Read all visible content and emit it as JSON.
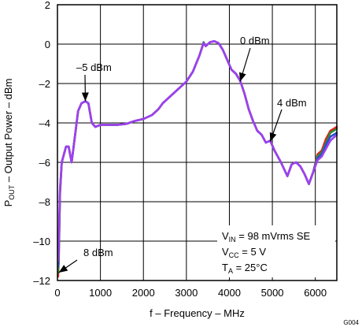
{
  "chart_data": {
    "type": "line",
    "xlabel": "f – Frequency – MHz",
    "ylabel": {
      "prefix": "P",
      "sub": "OUT",
      "rest": " – Output Power – dBm"
    },
    "xlim": [
      0,
      6500
    ],
    "ylim": [
      -12,
      2
    ],
    "xticks": [
      0,
      1000,
      2000,
      3000,
      4000,
      5000,
      6000
    ],
    "yticks": [
      2,
      0,
      -2,
      -4,
      -6,
      -8,
      -10,
      -12
    ],
    "xtick_labels": [
      "0",
      "1000",
      "2000",
      "3000",
      "4000",
      "5000",
      "6000"
    ],
    "ytick_labels": [
      "2",
      "0",
      "–2",
      "–4",
      "–6",
      "–8",
      "–10",
      "–12"
    ],
    "grid": true,
    "annotations": [
      {
        "text": "–5 dBm",
        "target": [
          650,
          -2.9
        ]
      },
      {
        "text": "0 dBm",
        "target": [
          4250,
          -1.9
        ]
      },
      {
        "text": "4 dBm",
        "target": [
          4950,
          -4.95
        ]
      },
      {
        "text": "8 dBm",
        "target": [
          30,
          -11.6
        ]
      }
    ],
    "conditions": [
      {
        "pre": "V",
        "sub": "IN",
        "post": " = 98 mVrms SE"
      },
      {
        "pre": "V",
        "sub": "CC",
        "post": " = 5 V"
      },
      {
        "pre": "T",
        "sub": "A",
        "post": " = 25°C"
      }
    ],
    "figure_id": "G004",
    "series": [
      {
        "name": "8 dBm",
        "color": "#e8201a",
        "values": [
          [
            15,
            -11.8
          ],
          [
            30,
            -11.0
          ],
          [
            60,
            -7.6
          ],
          [
            100,
            -6.0
          ],
          [
            150,
            -5.6
          ],
          [
            200,
            -5.2
          ],
          [
            260,
            -5.2
          ],
          [
            330,
            -6.0
          ],
          [
            400,
            -4.8
          ],
          [
            480,
            -3.4
          ],
          [
            560,
            -3.0
          ],
          [
            650,
            -2.9
          ],
          [
            720,
            -3.0
          ],
          [
            800,
            -4.0
          ],
          [
            880,
            -4.2
          ],
          [
            1000,
            -4.1
          ],
          [
            1200,
            -4.1
          ],
          [
            1400,
            -4.1
          ],
          [
            1600,
            -4.05
          ],
          [
            1800,
            -3.9
          ],
          [
            2000,
            -3.8
          ],
          [
            2200,
            -3.6
          ],
          [
            2350,
            -3.3
          ],
          [
            2450,
            -3.0
          ],
          [
            2600,
            -2.7
          ],
          [
            2800,
            -2.3
          ],
          [
            3000,
            -1.9
          ],
          [
            3150,
            -1.4
          ],
          [
            3300,
            -0.6
          ],
          [
            3400,
            0.05
          ],
          [
            3450,
            -0.1
          ],
          [
            3550,
            0.1
          ],
          [
            3650,
            0.15
          ],
          [
            3750,
            0.05
          ],
          [
            3850,
            -0.3
          ],
          [
            3950,
            -0.8
          ],
          [
            4050,
            -1.3
          ],
          [
            4150,
            -1.5
          ],
          [
            4250,
            -1.85
          ],
          [
            4350,
            -2.5
          ],
          [
            4450,
            -3.3
          ],
          [
            4550,
            -3.9
          ],
          [
            4650,
            -4.4
          ],
          [
            4750,
            -4.6
          ],
          [
            4850,
            -5.0
          ],
          [
            4950,
            -4.9
          ],
          [
            5050,
            -5.4
          ],
          [
            5200,
            -6.0
          ],
          [
            5350,
            -6.7
          ],
          [
            5450,
            -6.1
          ],
          [
            5550,
            -6.0
          ],
          [
            5650,
            -6.2
          ],
          [
            5750,
            -6.6
          ],
          [
            5850,
            -7.1
          ],
          [
            5950,
            -6.5
          ],
          [
            6050,
            -5.6
          ],
          [
            6150,
            -5.4
          ],
          [
            6250,
            -4.8
          ],
          [
            6350,
            -4.4
          ],
          [
            6500,
            -4.2
          ]
        ]
      },
      {
        "name": "4 dBm",
        "color": "#2e8b3a",
        "values": [
          [
            15,
            -11.6
          ],
          [
            30,
            -10.8
          ],
          [
            60,
            -7.5
          ],
          [
            100,
            -6.0
          ],
          [
            150,
            -5.6
          ],
          [
            200,
            -5.2
          ],
          [
            260,
            -5.2
          ],
          [
            330,
            -6.0
          ],
          [
            400,
            -4.8
          ],
          [
            480,
            -3.4
          ],
          [
            560,
            -3.0
          ],
          [
            650,
            -2.9
          ],
          [
            720,
            -3.0
          ],
          [
            800,
            -4.0
          ],
          [
            880,
            -4.2
          ],
          [
            1000,
            -4.1
          ],
          [
            1200,
            -4.1
          ],
          [
            1400,
            -4.1
          ],
          [
            1600,
            -4.05
          ],
          [
            1800,
            -3.9
          ],
          [
            2000,
            -3.8
          ],
          [
            2200,
            -3.6
          ],
          [
            2350,
            -3.3
          ],
          [
            2450,
            -3.0
          ],
          [
            2600,
            -2.7
          ],
          [
            2800,
            -2.3
          ],
          [
            3000,
            -1.9
          ],
          [
            3150,
            -1.4
          ],
          [
            3300,
            -0.6
          ],
          [
            3400,
            0.1
          ],
          [
            3450,
            -0.1
          ],
          [
            3550,
            0.1
          ],
          [
            3650,
            0.15
          ],
          [
            3750,
            0.05
          ],
          [
            3850,
            -0.3
          ],
          [
            3950,
            -0.8
          ],
          [
            4050,
            -1.3
          ],
          [
            4150,
            -1.5
          ],
          [
            4250,
            -1.85
          ],
          [
            4350,
            -2.5
          ],
          [
            4450,
            -3.3
          ],
          [
            4550,
            -3.9
          ],
          [
            4650,
            -4.4
          ],
          [
            4750,
            -4.6
          ],
          [
            4850,
            -5.0
          ],
          [
            4950,
            -4.9
          ],
          [
            5050,
            -5.4
          ],
          [
            5200,
            -6.0
          ],
          [
            5350,
            -6.7
          ],
          [
            5450,
            -6.1
          ],
          [
            5550,
            -6.0
          ],
          [
            5650,
            -6.2
          ],
          [
            5750,
            -6.6
          ],
          [
            5850,
            -7.1
          ],
          [
            5950,
            -6.5
          ],
          [
            6050,
            -5.7
          ],
          [
            6150,
            -5.5
          ],
          [
            6250,
            -5.0
          ],
          [
            6350,
            -4.5
          ],
          [
            6500,
            -4.3
          ]
        ]
      },
      {
        "name": "0 dBm",
        "color": "#2452c8",
        "values": [
          [
            15,
            -11.3
          ],
          [
            30,
            -10.5
          ],
          [
            60,
            -7.4
          ],
          [
            100,
            -6.0
          ],
          [
            150,
            -5.6
          ],
          [
            200,
            -5.2
          ],
          [
            260,
            -5.2
          ],
          [
            330,
            -6.0
          ],
          [
            400,
            -4.8
          ],
          [
            480,
            -3.4
          ],
          [
            560,
            -3.0
          ],
          [
            650,
            -2.9
          ],
          [
            720,
            -3.0
          ],
          [
            800,
            -4.0
          ],
          [
            880,
            -4.2
          ],
          [
            1000,
            -4.1
          ],
          [
            1200,
            -4.1
          ],
          [
            1400,
            -4.1
          ],
          [
            1600,
            -4.05
          ],
          [
            1800,
            -3.9
          ],
          [
            2000,
            -3.8
          ],
          [
            2200,
            -3.6
          ],
          [
            2350,
            -3.3
          ],
          [
            2450,
            -3.0
          ],
          [
            2600,
            -2.7
          ],
          [
            2800,
            -2.3
          ],
          [
            3000,
            -1.9
          ],
          [
            3150,
            -1.4
          ],
          [
            3300,
            -0.6
          ],
          [
            3400,
            0.05
          ],
          [
            3450,
            -0.1
          ],
          [
            3550,
            0.1
          ],
          [
            3650,
            0.15
          ],
          [
            3750,
            0.05
          ],
          [
            3850,
            -0.3
          ],
          [
            3950,
            -0.8
          ],
          [
            4050,
            -1.3
          ],
          [
            4150,
            -1.5
          ],
          [
            4250,
            -1.85
          ],
          [
            4350,
            -2.5
          ],
          [
            4450,
            -3.3
          ],
          [
            4550,
            -3.9
          ],
          [
            4650,
            -4.4
          ],
          [
            4750,
            -4.6
          ],
          [
            4850,
            -5.0
          ],
          [
            4950,
            -4.9
          ],
          [
            5050,
            -5.4
          ],
          [
            5200,
            -6.0
          ],
          [
            5350,
            -6.7
          ],
          [
            5450,
            -6.1
          ],
          [
            5550,
            -6.0
          ],
          [
            5650,
            -6.2
          ],
          [
            5750,
            -6.6
          ],
          [
            5850,
            -7.1
          ],
          [
            5950,
            -6.5
          ],
          [
            6050,
            -5.8
          ],
          [
            6150,
            -5.6
          ],
          [
            6250,
            -5.1
          ],
          [
            6350,
            -4.7
          ],
          [
            6500,
            -4.5
          ]
        ]
      },
      {
        "name": "–5 dBm",
        "color": "#a040f0",
        "values": [
          [
            15,
            -11.0
          ],
          [
            30,
            -10.0
          ],
          [
            60,
            -7.3
          ],
          [
            100,
            -6.0
          ],
          [
            150,
            -5.6
          ],
          [
            200,
            -5.2
          ],
          [
            260,
            -5.2
          ],
          [
            330,
            -6.0
          ],
          [
            400,
            -4.8
          ],
          [
            480,
            -3.4
          ],
          [
            560,
            -3.0
          ],
          [
            650,
            -2.9
          ],
          [
            720,
            -3.0
          ],
          [
            800,
            -4.0
          ],
          [
            880,
            -4.2
          ],
          [
            1000,
            -4.1
          ],
          [
            1200,
            -4.1
          ],
          [
            1400,
            -4.1
          ],
          [
            1600,
            -4.05
          ],
          [
            1800,
            -3.9
          ],
          [
            2000,
            -3.8
          ],
          [
            2200,
            -3.6
          ],
          [
            2350,
            -3.3
          ],
          [
            2450,
            -3.0
          ],
          [
            2600,
            -2.7
          ],
          [
            2800,
            -2.3
          ],
          [
            3000,
            -1.9
          ],
          [
            3150,
            -1.4
          ],
          [
            3300,
            -0.6
          ],
          [
            3400,
            0.05
          ],
          [
            3450,
            -0.1
          ],
          [
            3550,
            0.1
          ],
          [
            3650,
            0.15
          ],
          [
            3750,
            0.05
          ],
          [
            3850,
            -0.3
          ],
          [
            3950,
            -0.8
          ],
          [
            4050,
            -1.3
          ],
          [
            4150,
            -1.5
          ],
          [
            4250,
            -1.85
          ],
          [
            4350,
            -2.5
          ],
          [
            4450,
            -3.3
          ],
          [
            4550,
            -3.9
          ],
          [
            4650,
            -4.4
          ],
          [
            4750,
            -4.6
          ],
          [
            4850,
            -5.0
          ],
          [
            4950,
            -4.9
          ],
          [
            5050,
            -5.4
          ],
          [
            5200,
            -6.0
          ],
          [
            5350,
            -6.7
          ],
          [
            5450,
            -6.1
          ],
          [
            5550,
            -6.0
          ],
          [
            5650,
            -6.2
          ],
          [
            5750,
            -6.6
          ],
          [
            5850,
            -7.1
          ],
          [
            5950,
            -6.5
          ],
          [
            6050,
            -5.9
          ],
          [
            6150,
            -5.7
          ],
          [
            6250,
            -5.3
          ],
          [
            6350,
            -4.9
          ],
          [
            6500,
            -4.6
          ]
        ]
      }
    ]
  }
}
